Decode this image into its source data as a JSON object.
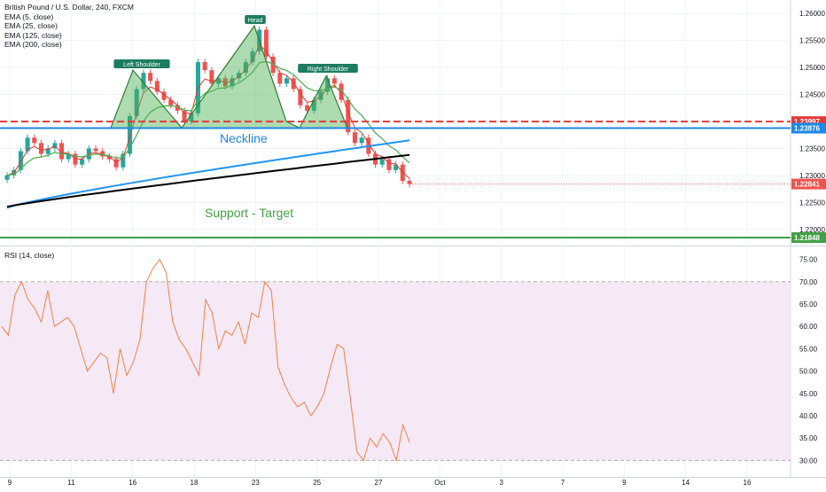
{
  "chart_data": {
    "type": "candlestick",
    "title": "British Pound / U.S. Dollar, 240, FXCM",
    "indicators": [
      "EMA (5, close)",
      "EMA (25, close)",
      "EMA (125, close)",
      "EMA (200, close)"
    ],
    "price_axis": {
      "ticks": [
        "1.26000",
        "1.25500",
        "1.25000",
        "1.24500",
        "1.24000",
        "1.23500",
        "1.23000",
        "1.22500",
        "1.22000"
      ],
      "ylim": [
        1.2175,
        1.2625
      ]
    },
    "x_axis": {
      "ticks": [
        "9",
        "11",
        "16",
        "18",
        "23",
        "25",
        "27",
        "Oct",
        "3",
        "7",
        "9",
        "14",
        "16"
      ]
    },
    "annotations": {
      "head": "Head",
      "left_shoulder": "Left Shoulder",
      "right_shoulder": "Right Shoulder",
      "neckline": "Neckline",
      "support": "Support - Target"
    },
    "levels": {
      "resistance": {
        "value": 1.23997,
        "label": "1.23997",
        "color": "#e53935",
        "style": "dashed"
      },
      "neckline": {
        "value": 1.23876,
        "label": "1.23876",
        "color": "#1e88e5"
      },
      "current": {
        "value": 1.22841,
        "label": "1.22841",
        "color": "#ef5350"
      },
      "support": {
        "value": 1.21848,
        "label": "1.21848",
        "color": "#43a047"
      }
    },
    "candles_approx_close": [
      1.23,
      1.231,
      1.2345,
      1.237,
      1.236,
      1.234,
      1.235,
      1.236,
      1.233,
      1.234,
      1.232,
      1.233,
      1.235,
      1.2345,
      1.2335,
      1.233,
      1.2315,
      1.234,
      1.241,
      1.246,
      1.249,
      1.2475,
      1.2455,
      1.244,
      1.243,
      1.242,
      1.24,
      1.2415,
      1.251,
      1.2495,
      1.247,
      1.248,
      1.2465,
      1.248,
      1.249,
      1.251,
      1.253,
      1.257,
      1.252,
      1.249,
      1.247,
      1.248,
      1.246,
      1.243,
      1.242,
      1.244,
      1.2455,
      1.248,
      1.247,
      1.244,
      1.238,
      1.236,
      1.237,
      1.234,
      1.232,
      1.233,
      1.231,
      1.232,
      1.229,
      1.2284
    ],
    "rsi": {
      "label": "RSI (14, close)",
      "ticks": [
        "75.00",
        "70.00",
        "65.00",
        "60.00",
        "55.00",
        "50.00",
        "45.00",
        "40.00",
        "35.00",
        "30.00"
      ],
      "ylim": [
        27.5,
        77.5
      ],
      "band": [
        30,
        70
      ],
      "values": [
        60,
        58,
        67,
        70,
        66,
        64,
        61,
        68,
        60,
        61,
        62,
        60,
        55,
        50,
        52,
        54,
        53,
        45,
        55,
        49,
        52,
        57,
        70,
        73,
        75,
        72,
        61,
        57,
        55,
        52,
        49,
        66,
        63,
        55,
        59,
        58,
        61,
        56,
        63,
        62,
        70,
        68,
        51,
        47,
        44,
        42,
        43,
        40,
        42,
        45,
        51,
        56,
        55,
        44,
        32,
        30,
        35,
        33,
        36,
        34,
        30,
        38,
        34
      ]
    }
  }
}
